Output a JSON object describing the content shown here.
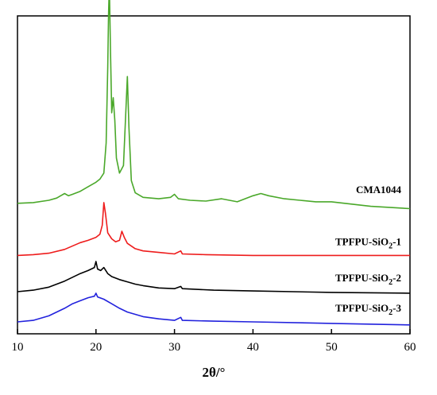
{
  "chart_data": {
    "type": "line",
    "xlabel": "2θ/°",
    "ylabel": "",
    "xlim": [
      10,
      60
    ],
    "xticks": [
      10,
      20,
      30,
      40,
      50,
      60
    ],
    "grid": false,
    "legend": "inline labels at right end of each trace",
    "series": [
      {
        "name": "CMA1044",
        "label_main": "CMA1044",
        "label_sub": "",
        "label_tail": "",
        "color": "#4aa82a",
        "offset": 0.785,
        "points": [
          [
            10,
            0.0
          ],
          [
            12,
            0.005
          ],
          [
            14,
            0.02
          ],
          [
            15,
            0.035
          ],
          [
            15.5,
            0.05
          ],
          [
            16,
            0.065
          ],
          [
            16.5,
            0.05
          ],
          [
            17,
            0.06
          ],
          [
            18,
            0.08
          ],
          [
            19,
            0.11
          ],
          [
            20,
            0.14
          ],
          [
            20.5,
            0.16
          ],
          [
            21,
            0.2
          ],
          [
            21.3,
            0.4
          ],
          [
            21.5,
            0.9
          ],
          [
            21.6,
            1.25
          ],
          [
            21.7,
            1.45
          ],
          [
            21.85,
            1.0
          ],
          [
            22,
            0.6
          ],
          [
            22.2,
            0.7
          ],
          [
            22.4,
            0.55
          ],
          [
            22.6,
            0.3
          ],
          [
            23,
            0.2
          ],
          [
            23.5,
            0.25
          ],
          [
            23.8,
            0.6
          ],
          [
            24,
            0.84
          ],
          [
            24.2,
            0.5
          ],
          [
            24.5,
            0.15
          ],
          [
            25,
            0.07
          ],
          [
            26,
            0.04
          ],
          [
            28,
            0.03
          ],
          [
            29.5,
            0.04
          ],
          [
            30,
            0.06
          ],
          [
            30.5,
            0.03
          ],
          [
            32,
            0.02
          ],
          [
            34,
            0.015
          ],
          [
            36,
            0.03
          ],
          [
            38,
            0.01
          ],
          [
            40,
            0.05
          ],
          [
            41,
            0.065
          ],
          [
            42,
            0.05
          ],
          [
            44,
            0.03
          ],
          [
            46,
            0.02
          ],
          [
            48,
            0.01
          ],
          [
            50,
            0.01
          ],
          [
            55,
            -0.02
          ],
          [
            60,
            -0.035
          ]
        ]
      },
      {
        "name": "TPFPU-SiO2-1",
        "label_main": "TPFPU-SiO",
        "label_sub": "2",
        "label_tail": "-1",
        "color": "#ee1c1c",
        "offset": 0.44,
        "points": [
          [
            10,
            0.0
          ],
          [
            12,
            0.005
          ],
          [
            14,
            0.015
          ],
          [
            16,
            0.04
          ],
          [
            18,
            0.085
          ],
          [
            19,
            0.1
          ],
          [
            20,
            0.12
          ],
          [
            20.5,
            0.14
          ],
          [
            20.8,
            0.2
          ],
          [
            21,
            0.35
          ],
          [
            21.2,
            0.28
          ],
          [
            21.5,
            0.15
          ],
          [
            22,
            0.11
          ],
          [
            22.5,
            0.09
          ],
          [
            23,
            0.1
          ],
          [
            23.3,
            0.16
          ],
          [
            23.6,
            0.12
          ],
          [
            24,
            0.08
          ],
          [
            25,
            0.045
          ],
          [
            26,
            0.03
          ],
          [
            28,
            0.02
          ],
          [
            30,
            0.01
          ],
          [
            30.8,
            0.03
          ],
          [
            31,
            0.01
          ],
          [
            34,
            0.005
          ],
          [
            40,
            0.0
          ],
          [
            50,
            0.0
          ],
          [
            60,
            0.0
          ]
        ]
      },
      {
        "name": "TPFPU-SiO2-2",
        "label_main": "TPFPU-SiO",
        "label_sub": "2",
        "label_tail": "-2",
        "color": "#000000",
        "offset": 0.2,
        "points": [
          [
            10,
            0.0
          ],
          [
            12,
            0.01
          ],
          [
            14,
            0.03
          ],
          [
            16,
            0.07
          ],
          [
            18,
            0.12
          ],
          [
            19,
            0.14
          ],
          [
            19.8,
            0.16
          ],
          [
            20,
            0.2
          ],
          [
            20.2,
            0.15
          ],
          [
            20.6,
            0.14
          ],
          [
            21,
            0.16
          ],
          [
            21.5,
            0.12
          ],
          [
            22,
            0.1
          ],
          [
            23,
            0.08
          ],
          [
            24,
            0.065
          ],
          [
            25,
            0.05
          ],
          [
            26,
            0.04
          ],
          [
            28,
            0.025
          ],
          [
            30,
            0.02
          ],
          [
            30.8,
            0.035
          ],
          [
            31,
            0.02
          ],
          [
            35,
            0.01
          ],
          [
            40,
            0.005
          ],
          [
            50,
            -0.005
          ],
          [
            60,
            -0.01
          ]
        ]
      },
      {
        "name": "TPFPU-SiO2-3",
        "label_main": "TPFPU-SiO",
        "label_sub": "2",
        "label_tail": "-3",
        "color": "#2222dd",
        "offset": 0.0,
        "points": [
          [
            10,
            0.0
          ],
          [
            12,
            0.01
          ],
          [
            14,
            0.04
          ],
          [
            16,
            0.09
          ],
          [
            17,
            0.12
          ],
          [
            18,
            0.14
          ],
          [
            19,
            0.16
          ],
          [
            19.8,
            0.17
          ],
          [
            20,
            0.19
          ],
          [
            20.2,
            0.165
          ],
          [
            21,
            0.15
          ],
          [
            22,
            0.12
          ],
          [
            23,
            0.09
          ],
          [
            24,
            0.065
          ],
          [
            25,
            0.05
          ],
          [
            26,
            0.035
          ],
          [
            28,
            0.02
          ],
          [
            30,
            0.01
          ],
          [
            30.8,
            0.03
          ],
          [
            31,
            0.01
          ],
          [
            35,
            0.005
          ],
          [
            40,
            0.0
          ],
          [
            50,
            -0.01
          ],
          [
            60,
            -0.02
          ]
        ]
      }
    ]
  }
}
